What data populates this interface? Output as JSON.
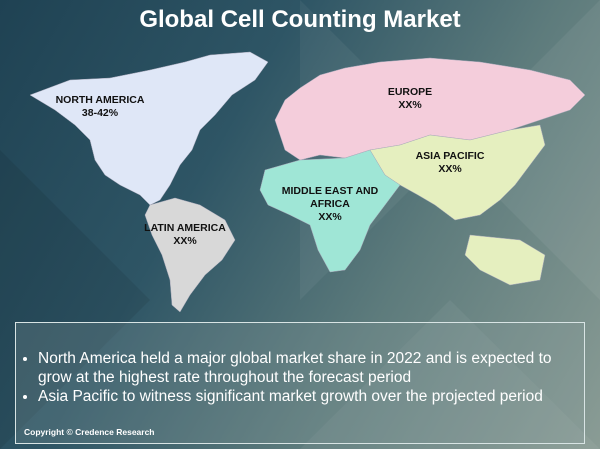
{
  "title": "Global Cell Counting Market",
  "regions": [
    {
      "name": "NORTH AMERICA",
      "value": "38-42%",
      "color": "#dfe7f7"
    },
    {
      "name": "EUROPE",
      "value": "XX%",
      "color": "#f4cddb"
    },
    {
      "name": "ASIA PACIFIC",
      "value": "XX%",
      "color": "#e5efbf"
    },
    {
      "name": "MIDDLE EAST AND AFRICA",
      "value": "XX%",
      "color": "#9fe6d6"
    },
    {
      "name": "LATIN AMERICA",
      "value": "XX%",
      "color": "#d8d8d8"
    }
  ],
  "bullets": [
    "North America held a major global market share in 2022 and is expected to grow at the highest rate throughout the forecast period",
    "Asia Pacific to witness significant market growth over the projected period"
  ],
  "copyright": "Copyright © Credence Research"
}
